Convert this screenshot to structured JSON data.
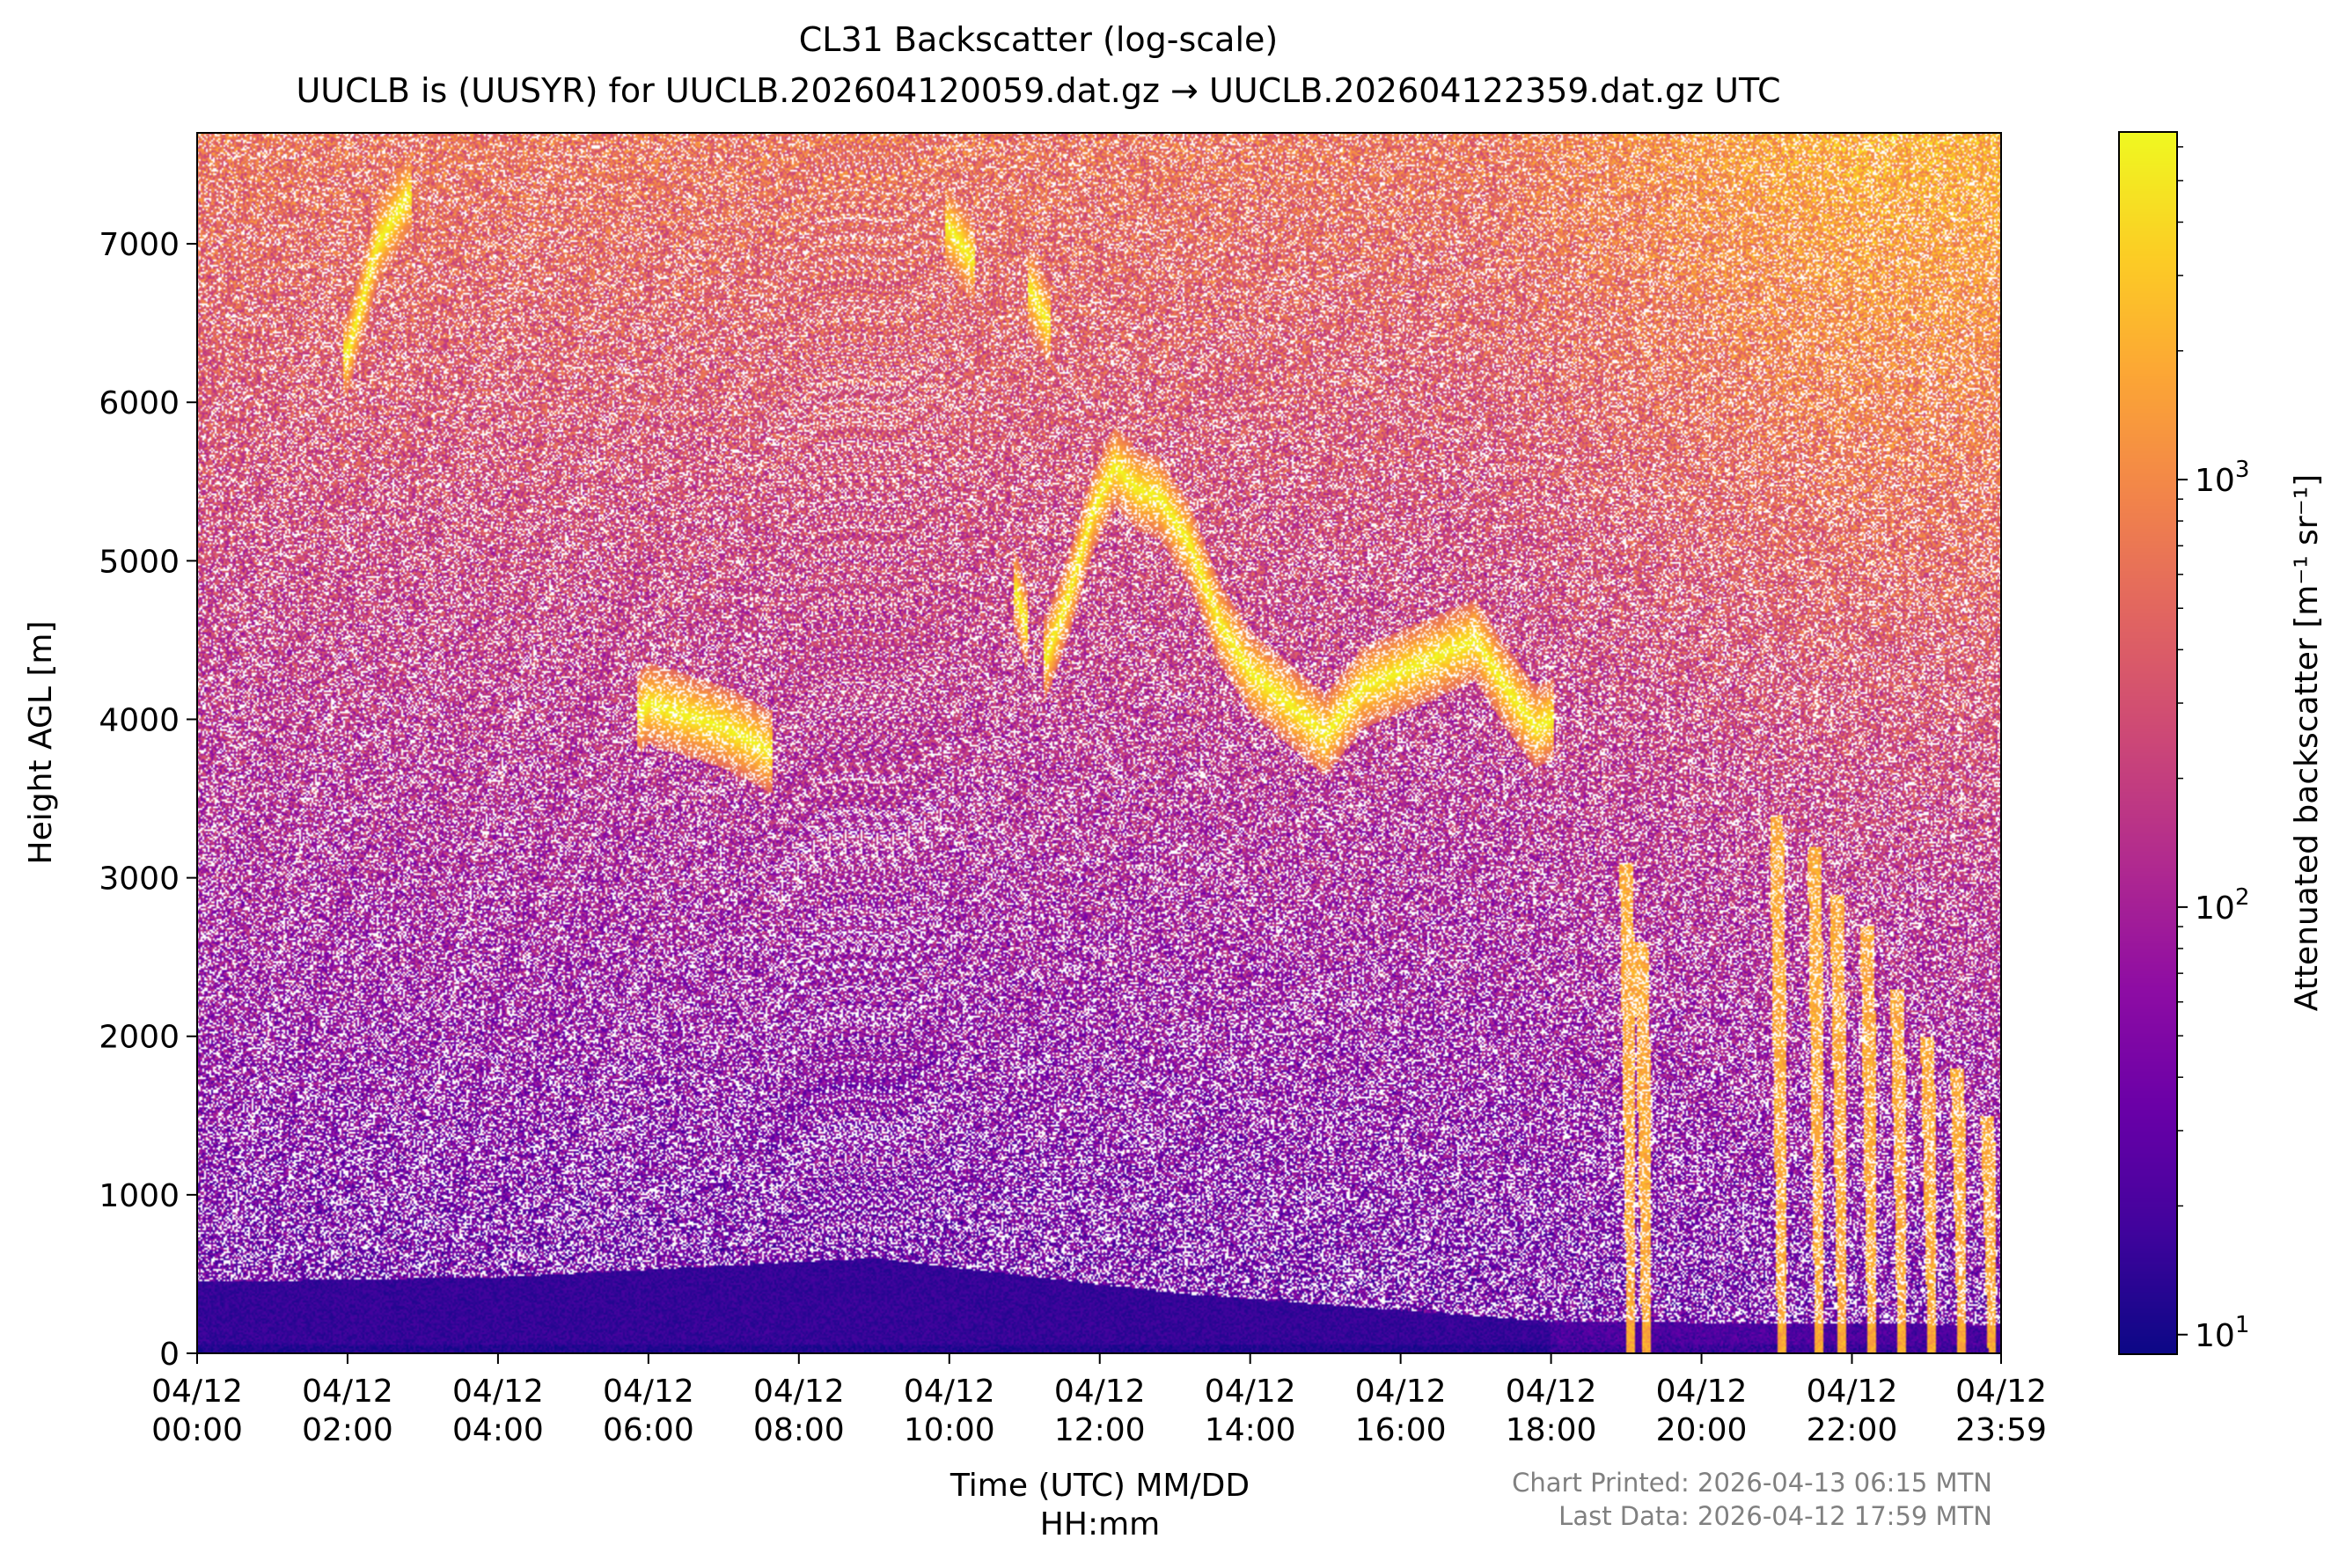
{
  "chart_data": {
    "type": "heatmap",
    "title": "CL31 Backscatter (log-scale)",
    "subtitle": "UUCLB is (UUSYR) for UUCLB.202604120059.dat.gz → UUCLB.202604122359.dat.gz UTC",
    "xlabel_line1": "Time (UTC) MM/DD",
    "xlabel_line2": "HH:mm",
    "ylabel": "Height AGL [m]",
    "x_range_hours": [
      0,
      23.983
    ],
    "ylim": [
      0,
      7700
    ],
    "x_ticks": [
      {
        "hour": 0,
        "date": "04/12",
        "time": "00:00"
      },
      {
        "hour": 2,
        "date": "04/12",
        "time": "02:00"
      },
      {
        "hour": 4,
        "date": "04/12",
        "time": "04:00"
      },
      {
        "hour": 6,
        "date": "04/12",
        "time": "06:00"
      },
      {
        "hour": 8,
        "date": "04/12",
        "time": "08:00"
      },
      {
        "hour": 10,
        "date": "04/12",
        "time": "10:00"
      },
      {
        "hour": 12,
        "date": "04/12",
        "time": "12:00"
      },
      {
        "hour": 14,
        "date": "04/12",
        "time": "14:00"
      },
      {
        "hour": 16,
        "date": "04/12",
        "time": "16:00"
      },
      {
        "hour": 18,
        "date": "04/12",
        "time": "18:00"
      },
      {
        "hour": 20,
        "date": "04/12",
        "time": "20:00"
      },
      {
        "hour": 22,
        "date": "04/12",
        "time": "22:00"
      },
      {
        "hour": 23.983,
        "date": "04/12",
        "time": "23:59"
      }
    ],
    "y_ticks": [
      0,
      1000,
      2000,
      3000,
      4000,
      5000,
      6000,
      7000
    ],
    "colorbar": {
      "label": "Attenuated backscatter [m⁻¹ sr⁻¹]",
      "scale": "log",
      "range": [
        9,
        6500
      ],
      "colormap": "plasma",
      "major_ticks": [
        {
          "value": 10,
          "base": "10",
          "exp": "1"
        },
        {
          "value": 100,
          "base": "10",
          "exp": "2"
        },
        {
          "value": 1000,
          "base": "10",
          "exp": "3"
        }
      ]
    },
    "features": {
      "boundary_layer": {
        "approx_top_m": [
          [
            0,
            450
          ],
          [
            4,
            480
          ],
          [
            9,
            600
          ],
          [
            13,
            380
          ],
          [
            18,
            200
          ],
          [
            24,
            180
          ]
        ]
      },
      "cloud_layers": [
        {
          "name": "",
          "points": [
            [
              5.9,
              4050
            ],
            [
              6.0,
              4100
            ],
            [
              7.0,
              3950
            ],
            [
              7.3,
              3880
            ],
            [
              7.6,
              3800
            ]
          ]
        },
        {
          "name": "",
          "points": [
            [
              11.3,
              4400
            ],
            [
              11.6,
              4800
            ],
            [
              11.9,
              5300
            ],
            [
              12.2,
              5600
            ],
            [
              12.5,
              5450
            ],
            [
              12.8,
              5400
            ],
            [
              13.2,
              5100
            ],
            [
              13.6,
              4600
            ],
            [
              14.0,
              4300
            ],
            [
              14.5,
              4100
            ],
            [
              15.0,
              3900
            ],
            [
              15.5,
              4200
            ],
            [
              16.0,
              4300
            ],
            [
              16.5,
              4400
            ],
            [
              17.0,
              4500
            ],
            [
              17.4,
              4200
            ],
            [
              17.8,
              3950
            ],
            [
              18.0,
              4000
            ]
          ]
        },
        {
          "name": "",
          "points": [
            [
              10.9,
              4800
            ],
            [
              11.0,
              4600
            ]
          ]
        },
        {
          "name": "",
          "points": [
            [
              10.0,
              7100
            ],
            [
              10.3,
              6900
            ]
          ]
        },
        {
          "name": "",
          "points": [
            [
              11.1,
              6700
            ],
            [
              11.3,
              6500
            ]
          ]
        },
        {
          "name": "",
          "points": [
            [
              2.0,
              6300
            ],
            [
              2.4,
              7000
            ],
            [
              2.8,
              7300
            ]
          ]
        }
      ],
      "precip_streaks": [
        {
          "hour": 19.0,
          "top_m": 3100
        },
        {
          "hour": 19.2,
          "top_m": 2600
        },
        {
          "hour": 21.0,
          "top_m": 3400
        },
        {
          "hour": 21.5,
          "top_m": 3200
        },
        {
          "hour": 21.8,
          "top_m": 2900
        },
        {
          "hour": 22.2,
          "top_m": 2700
        },
        {
          "hour": 22.6,
          "top_m": 2300
        },
        {
          "hour": 23.0,
          "top_m": 2000
        },
        {
          "hour": 23.4,
          "top_m": 1800
        },
        {
          "hour": 23.8,
          "top_m": 1500
        }
      ]
    }
  },
  "footer": {
    "printed": "Chart Printed: 2026-04-13 06:15 MTN",
    "last_data": "Last Data: 2026-04-12 17:59 MTN"
  }
}
